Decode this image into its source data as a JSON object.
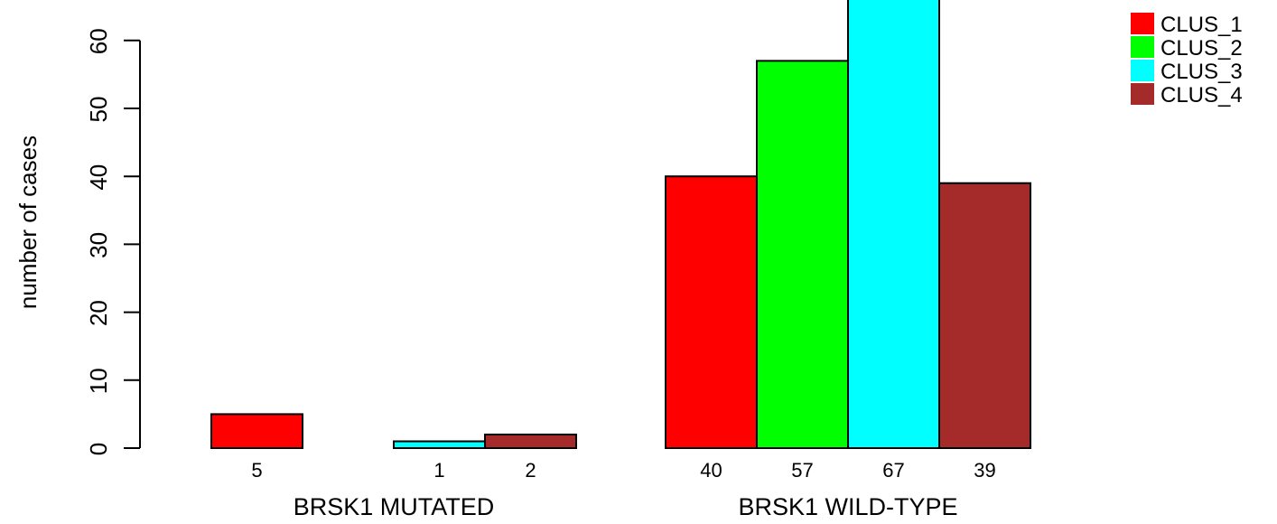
{
  "chart_data": {
    "type": "bar",
    "ylabel": "number of cases",
    "ylim": [
      0,
      65
    ],
    "yticks": [
      0,
      10,
      20,
      30,
      40,
      50,
      60
    ],
    "grid": false,
    "legend_position": "top-right",
    "series": [
      {
        "name": "CLUS_1",
        "color": "#ff0000"
      },
      {
        "name": "CLUS_2",
        "color": "#00ff00"
      },
      {
        "name": "CLUS_3",
        "color": "#00ffff"
      },
      {
        "name": "CLUS_4",
        "color": "#a52a2a"
      }
    ],
    "groups": [
      {
        "label": "BRSK1 MUTATED",
        "values": [
          5,
          0,
          1,
          2
        ],
        "value_labels": [
          "5",
          "",
          "1",
          "2"
        ]
      },
      {
        "label": "BRSK1 WILD-TYPE",
        "values": [
          40,
          57,
          67,
          39
        ],
        "value_labels": [
          "40",
          "57",
          "67",
          "39"
        ]
      }
    ]
  }
}
